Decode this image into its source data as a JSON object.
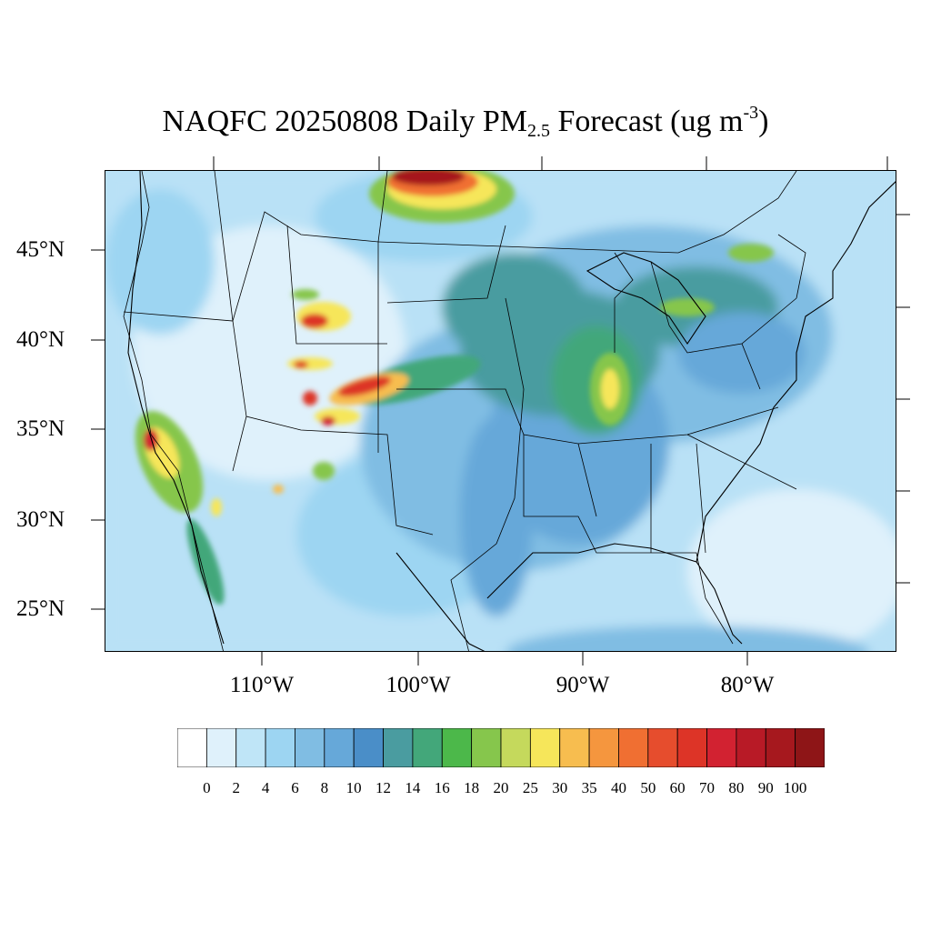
{
  "title": {
    "main": "NAQFC 20250808 Daily PM",
    "sub": "2.5",
    "mid": " Forecast (ug m",
    "sup": "-3",
    "end": ")"
  },
  "axes": {
    "lat_labels": [
      "45°N",
      "40°N",
      "35°N",
      "30°N",
      "25°N"
    ],
    "lon_labels": [
      "110°W",
      "100°W",
      "90°W",
      "80°W"
    ]
  },
  "colorbar": {
    "labels": [
      "0",
      "2",
      "4",
      "6",
      "8",
      "10",
      "12",
      "14",
      "16",
      "18",
      "20",
      "25",
      "30",
      "35",
      "40",
      "50",
      "60",
      "70",
      "80",
      "90",
      "100"
    ],
    "colors": [
      "#ffffff",
      "#dff1fb",
      "#bfe5f7",
      "#9dd5f2",
      "#80bde3",
      "#66a8d9",
      "#4a8ec8",
      "#4a9ca0",
      "#43a77a",
      "#4cb84a",
      "#86c64c",
      "#c5d95c",
      "#f6e65a",
      "#f7bd4f",
      "#f5963e",
      "#f06f32",
      "#e64d2d",
      "#dd3427",
      "#d22231",
      "#b81a26",
      "#a6181e",
      "#8e1517"
    ]
  },
  "map_layers": {
    "background_color": "#b9e1f6",
    "plumes": [
      "northern-canada-smoke",
      "wyoming-fires",
      "colorado-fires",
      "california-fires",
      "great-lakes-haze",
      "indiana-haze"
    ]
  }
}
